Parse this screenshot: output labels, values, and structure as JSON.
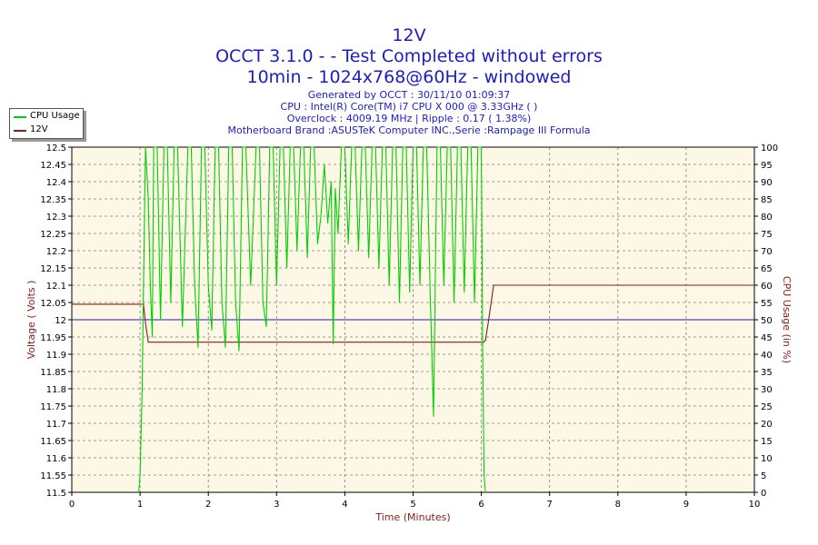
{
  "header": {
    "title": "12V",
    "line2": "OCCT 3.1.0 -  - Test Completed without errors",
    "line3": "10min - 1024x768@60Hz - windowed",
    "generated": "Generated by OCCT : 30/11/10 01:09:37",
    "cpu": "CPU : Intel(R) Core(TM) i7 CPU X 000 @ 3.33GHz (  )",
    "overclock": "Overclock : 4009.19 MHz | Ripple : 0.17 ( 1.38%)",
    "motherboard": "Motherboard Brand :ASUSTeK Computer INC.,Serie :Rampage III Formula"
  },
  "legend": [
    {
      "label": "CPU Usage",
      "color": "#00d000"
    },
    {
      "label": "12V",
      "color": "#8b1a1a"
    }
  ],
  "chart_data": {
    "type": "line",
    "xlabel": "Time (Minutes)",
    "ylabel": "Voltage ( Volts )",
    "y2label": "CPU Usage (in %)",
    "xlim": [
      0,
      10
    ],
    "ylim": [
      11.5,
      12.5
    ],
    "y2lim": [
      0,
      100
    ],
    "xticks": [
      "0",
      "1",
      "2",
      "3",
      "4",
      "5",
      "6",
      "7",
      "8",
      "9",
      "10"
    ],
    "yticks": [
      "11.5",
      "11.55",
      "11.6",
      "11.65",
      "11.7",
      "11.75",
      "11.8",
      "11.85",
      "11.9",
      "11.95",
      "12",
      "12.05",
      "12.1",
      "12.15",
      "12.2",
      "12.25",
      "12.3",
      "12.35",
      "12.4",
      "12.45",
      "12.5"
    ],
    "y2ticks": [
      "0",
      "5",
      "10",
      "15",
      "20",
      "25",
      "30",
      "35",
      "40",
      "45",
      "50",
      "55",
      "60",
      "65",
      "70",
      "75",
      "80",
      "85",
      "90",
      "95",
      "100"
    ],
    "grid": true,
    "reference_line": 12,
    "colors": {
      "cpu": "#00d000",
      "volt": "#8b1a1a",
      "reference": "#1c1cc8",
      "axis_text": "#8b1a1a",
      "title": "#1c1cc8"
    },
    "series": [
      {
        "name": "12V",
        "axis": "left",
        "points": [
          [
            0,
            12.045
          ],
          [
            1.05,
            12.045
          ],
          [
            1.08,
            11.99
          ],
          [
            1.12,
            11.935
          ],
          [
            6.03,
            11.935
          ],
          [
            6.06,
            11.94
          ],
          [
            6.1,
            11.99
          ],
          [
            6.18,
            12.1
          ],
          [
            10,
            12.1
          ]
        ]
      },
      {
        "name": "CPU Usage",
        "axis": "right",
        "points": [
          [
            0.98,
            0
          ],
          [
            1.0,
            5
          ],
          [
            1.03,
            30
          ],
          [
            1.05,
            60
          ],
          [
            1.08,
            100
          ],
          [
            1.12,
            85
          ],
          [
            1.15,
            60
          ],
          [
            1.18,
            45
          ],
          [
            1.2,
            100
          ],
          [
            1.25,
            100
          ],
          [
            1.3,
            50
          ],
          [
            1.35,
            100
          ],
          [
            1.4,
            100
          ],
          [
            1.45,
            55
          ],
          [
            1.5,
            100
          ],
          [
            1.55,
            100
          ],
          [
            1.62,
            48
          ],
          [
            1.7,
            100
          ],
          [
            1.75,
            100
          ],
          [
            1.8,
            60
          ],
          [
            1.85,
            42
          ],
          [
            1.9,
            100
          ],
          [
            1.95,
            100
          ],
          [
            2.0,
            60
          ],
          [
            2.05,
            47
          ],
          [
            2.1,
            100
          ],
          [
            2.15,
            100
          ],
          [
            2.2,
            55
          ],
          [
            2.25,
            42
          ],
          [
            2.3,
            100
          ],
          [
            2.35,
            100
          ],
          [
            2.4,
            55
          ],
          [
            2.45,
            41
          ],
          [
            2.5,
            100
          ],
          [
            2.55,
            100
          ],
          [
            2.62,
            60
          ],
          [
            2.7,
            100
          ],
          [
            2.75,
            100
          ],
          [
            2.8,
            55
          ],
          [
            2.85,
            48
          ],
          [
            2.9,
            100
          ],
          [
            2.95,
            100
          ],
          [
            3.0,
            60
          ],
          [
            3.05,
            100
          ],
          [
            3.1,
            100
          ],
          [
            3.15,
            65
          ],
          [
            3.2,
            100
          ],
          [
            3.25,
            100
          ],
          [
            3.3,
            70
          ],
          [
            3.35,
            100
          ],
          [
            3.4,
            100
          ],
          [
            3.45,
            68
          ],
          [
            3.5,
            100
          ],
          [
            3.55,
            100
          ],
          [
            3.6,
            72
          ],
          [
            3.65,
            80
          ],
          [
            3.7,
            95
          ],
          [
            3.75,
            78
          ],
          [
            3.8,
            90
          ],
          [
            3.83,
            43
          ],
          [
            3.86,
            88
          ],
          [
            3.9,
            75
          ],
          [
            3.95,
            100
          ],
          [
            4.0,
            100
          ],
          [
            4.05,
            72
          ],
          [
            4.1,
            100
          ],
          [
            4.15,
            100
          ],
          [
            4.2,
            70
          ],
          [
            4.25,
            100
          ],
          [
            4.3,
            100
          ],
          [
            4.35,
            68
          ],
          [
            4.4,
            100
          ],
          [
            4.45,
            100
          ],
          [
            4.5,
            65
          ],
          [
            4.55,
            100
          ],
          [
            4.6,
            100
          ],
          [
            4.65,
            60
          ],
          [
            4.7,
            100
          ],
          [
            4.75,
            100
          ],
          [
            4.8,
            55
          ],
          [
            4.85,
            100
          ],
          [
            4.9,
            100
          ],
          [
            4.95,
            58
          ],
          [
            5.0,
            100
          ],
          [
            5.05,
            100
          ],
          [
            5.1,
            60
          ],
          [
            5.15,
            100
          ],
          [
            5.2,
            100
          ],
          [
            5.25,
            58
          ],
          [
            5.3,
            22
          ],
          [
            5.35,
            100
          ],
          [
            5.4,
            100
          ],
          [
            5.45,
            60
          ],
          [
            5.5,
            100
          ],
          [
            5.55,
            100
          ],
          [
            5.6,
            55
          ],
          [
            5.65,
            100
          ],
          [
            5.7,
            100
          ],
          [
            5.75,
            58
          ],
          [
            5.8,
            100
          ],
          [
            5.85,
            100
          ],
          [
            5.9,
            55
          ],
          [
            5.95,
            100
          ],
          [
            6.0,
            100
          ],
          [
            6.02,
            40
          ],
          [
            6.04,
            5
          ],
          [
            6.06,
            0
          ]
        ]
      }
    ]
  }
}
